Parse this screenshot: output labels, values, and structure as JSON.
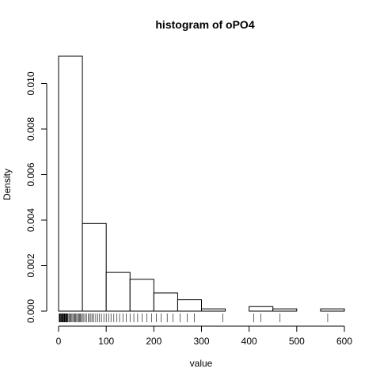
{
  "chart_data": {
    "type": "bar",
    "title": "histogram of oPO4",
    "xlabel": "value",
    "ylabel": "Density",
    "xlim": [
      0,
      600
    ],
    "ylim": [
      0,
      0.012
    ],
    "x_ticks": [
      0,
      100,
      200,
      300,
      400,
      500,
      600
    ],
    "x_tick_labels": [
      "0",
      "100",
      "200",
      "300",
      "400",
      "500",
      "600"
    ],
    "y_ticks": [
      0,
      0.002,
      0.004,
      0.006,
      0.008,
      0.01
    ],
    "y_tick_labels": [
      "0.000",
      "0.002",
      "0.004",
      "0.006",
      "0.008",
      "0.010"
    ],
    "bin_edges": [
      0,
      50,
      100,
      150,
      200,
      250,
      300,
      350,
      400,
      450,
      500,
      550,
      600
    ],
    "values": [
      0.0112,
      0.00385,
      0.0017,
      0.0014,
      0.0008,
      0.0005,
      0.0001,
      0.0,
      0.0002,
      0.0001,
      0.0,
      0.0001
    ],
    "rug": [
      1,
      2,
      3,
      4,
      5,
      6,
      7,
      8,
      9,
      10,
      11,
      12,
      13,
      14,
      15,
      16,
      17,
      18,
      19,
      20,
      22,
      24,
      26,
      28,
      30,
      32,
      34,
      36,
      38,
      40,
      42,
      44,
      46,
      48,
      50,
      53,
      56,
      59,
      62,
      65,
      68,
      71,
      74,
      78,
      82,
      86,
      90,
      95,
      100,
      105,
      110,
      116,
      122,
      128,
      135,
      142,
      150,
      158,
      166,
      175,
      185,
      195,
      205,
      215,
      228,
      240,
      255,
      270,
      285,
      345,
      410,
      425,
      465,
      565
    ],
    "grid": false
  }
}
